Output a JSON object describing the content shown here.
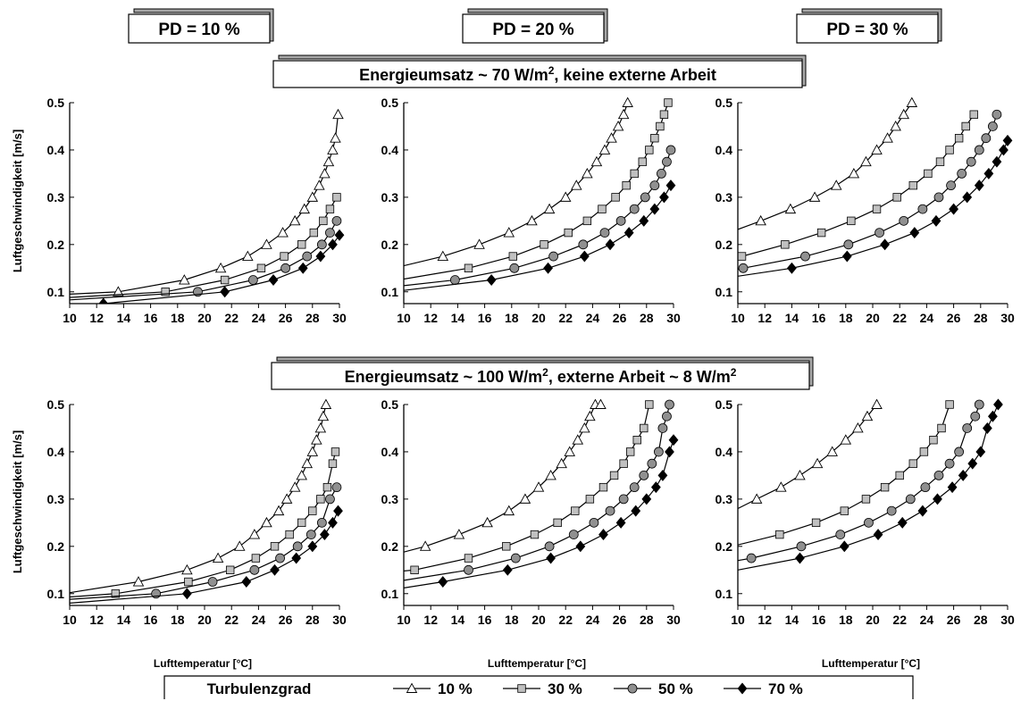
{
  "pd_labels": [
    "PD = 10 %",
    "PD = 20 %",
    "PD = 30 %"
  ],
  "row_titles": [
    {
      "before": "Energieumsatz ~ 70 W/m",
      "sup": "2",
      "after": ", keine externe Arbeit"
    },
    {
      "before": "Energieumsatz ~ 100 W/m",
      "sup": "2",
      "after": ", externe Arbeit ~ 8 W/m",
      "sup2": "2"
    }
  ],
  "y_axis_label": "Luftgeschwindigkeit [m/s]",
  "x_axis_label": "Lufttemperatur [°C]",
  "legend": {
    "title": "Turbulenzgrad",
    "entries": [
      {
        "label": "10 %",
        "marker": "triangle-open"
      },
      {
        "label": "30 %",
        "marker": "square-gray"
      },
      {
        "label": "50 %",
        "marker": "circle-gray"
      },
      {
        "label": "70 %",
        "marker": "diamond-black"
      }
    ]
  },
  "colors": {
    "line": "#000000",
    "square_fill": "#c0c0c0",
    "circle_fill": "#909090",
    "diamond_fill": "#000000"
  },
  "chart_data": [
    {
      "type": "line",
      "row": 0,
      "col": 0,
      "xlim": [
        10,
        30
      ],
      "ylim": [
        0.075,
        0.5
      ],
      "xticks": [
        10,
        12,
        14,
        16,
        18,
        20,
        22,
        24,
        26,
        28,
        30
      ],
      "yticks": [
        0.1,
        0.2,
        0.3,
        0.4,
        0.5
      ],
      "series": [
        {
          "name": "10 %",
          "x": [
            10,
            13.6,
            18.5,
            21.2,
            23.2,
            24.6,
            25.8,
            26.7,
            27.4,
            28.0,
            28.5,
            28.9,
            29.2,
            29.5,
            29.7,
            29.9
          ],
          "y": [
            0.095,
            0.1,
            0.125,
            0.15,
            0.175,
            0.2,
            0.225,
            0.25,
            0.275,
            0.3,
            0.325,
            0.35,
            0.375,
            0.4,
            0.425,
            0.475
          ]
        },
        {
          "name": "30 %",
          "x": [
            10,
            17.1,
            21.5,
            24.2,
            25.9,
            27.2,
            28.1,
            28.8,
            29.3,
            29.8
          ],
          "y": [
            0.088,
            0.1,
            0.125,
            0.15,
            0.175,
            0.2,
            0.225,
            0.25,
            0.275,
            0.3
          ]
        },
        {
          "name": "50 %",
          "x": [
            10,
            19.5,
            23.6,
            26.0,
            27.6,
            28.7,
            29.3,
            29.8
          ],
          "y": [
            0.083,
            0.1,
            0.125,
            0.15,
            0.175,
            0.2,
            0.225,
            0.25
          ]
        },
        {
          "name": "70 %",
          "x": [
            10,
            12.5,
            21.5,
            25.1,
            27.3,
            28.6,
            29.5,
            30
          ],
          "y": [
            0.07,
            0.075,
            0.1,
            0.125,
            0.15,
            0.175,
            0.2,
            0.22
          ]
        }
      ]
    },
    {
      "type": "line",
      "row": 0,
      "col": 1,
      "xlim": [
        10,
        30
      ],
      "ylim": [
        0.075,
        0.5
      ],
      "xticks": [
        10,
        12,
        14,
        16,
        18,
        20,
        22,
        24,
        26,
        28,
        30
      ],
      "yticks": [
        0.1,
        0.2,
        0.3,
        0.4,
        0.5
      ],
      "series": [
        {
          "name": "10 %",
          "x": [
            10,
            12.9,
            15.6,
            17.8,
            19.5,
            20.8,
            22.0,
            22.8,
            23.6,
            24.3,
            24.9,
            25.4,
            25.9,
            26.3,
            26.6
          ],
          "y": [
            0.155,
            0.175,
            0.2,
            0.225,
            0.25,
            0.275,
            0.3,
            0.325,
            0.35,
            0.375,
            0.4,
            0.425,
            0.45,
            0.475,
            0.5
          ]
        },
        {
          "name": "30 %",
          "x": [
            10,
            14.8,
            18.1,
            20.4,
            22.2,
            23.6,
            24.7,
            25.7,
            26.5,
            27.1,
            27.7,
            28.2,
            28.6,
            29.0,
            29.3,
            29.6
          ],
          "y": [
            0.127,
            0.15,
            0.175,
            0.2,
            0.225,
            0.25,
            0.275,
            0.3,
            0.325,
            0.35,
            0.375,
            0.4,
            0.425,
            0.45,
            0.475,
            0.5
          ]
        },
        {
          "name": "50 %",
          "x": [
            10,
            13.8,
            18.2,
            21.1,
            23.3,
            24.9,
            26.1,
            27.1,
            27.9,
            28.6,
            29.1,
            29.5,
            29.8
          ],
          "y": [
            0.113,
            0.125,
            0.15,
            0.175,
            0.2,
            0.225,
            0.25,
            0.275,
            0.3,
            0.325,
            0.35,
            0.375,
            0.4
          ]
        },
        {
          "name": "70 %",
          "x": [
            10,
            16.5,
            20.7,
            23.4,
            25.3,
            26.7,
            27.8,
            28.6,
            29.3,
            29.8
          ],
          "y": [
            0.103,
            0.125,
            0.15,
            0.175,
            0.2,
            0.225,
            0.25,
            0.275,
            0.3,
            0.325
          ]
        }
      ]
    },
    {
      "type": "line",
      "row": 0,
      "col": 2,
      "xlim": [
        10,
        30
      ],
      "ylim": [
        0.075,
        0.5
      ],
      "xticks": [
        10,
        12,
        14,
        16,
        18,
        20,
        22,
        24,
        26,
        28,
        30
      ],
      "yticks": [
        0.1,
        0.2,
        0.3,
        0.4,
        0.5
      ],
      "series": [
        {
          "name": "10 %",
          "x": [
            10,
            11.7,
            13.9,
            15.7,
            17.3,
            18.6,
            19.5,
            20.3,
            21.1,
            21.7,
            22.3,
            22.9
          ],
          "y": [
            0.232,
            0.25,
            0.275,
            0.3,
            0.325,
            0.35,
            0.375,
            0.4,
            0.425,
            0.45,
            0.475,
            0.5
          ]
        },
        {
          "name": "30 %",
          "x": [
            10,
            10.3,
            13.5,
            16.2,
            18.4,
            20.3,
            21.8,
            23.0,
            24.1,
            25.0,
            25.7,
            26.4,
            26.9,
            27.5
          ],
          "y": [
            0.175,
            0.175,
            0.2,
            0.225,
            0.25,
            0.275,
            0.3,
            0.325,
            0.35,
            0.375,
            0.4,
            0.425,
            0.45,
            0.475
          ]
        },
        {
          "name": "50 %",
          "x": [
            10,
            10.4,
            15.0,
            18.2,
            20.5,
            22.3,
            23.7,
            24.9,
            25.8,
            26.6,
            27.3,
            27.9,
            28.4,
            28.9,
            29.2
          ],
          "y": [
            0.148,
            0.15,
            0.175,
            0.2,
            0.225,
            0.25,
            0.275,
            0.3,
            0.325,
            0.35,
            0.375,
            0.4,
            0.425,
            0.45,
            0.475
          ]
        },
        {
          "name": "70 %",
          "x": [
            10,
            14.0,
            18.1,
            20.9,
            23.1,
            24.7,
            26.0,
            27.0,
            27.9,
            28.6,
            29.2,
            29.7,
            30
          ],
          "y": [
            0.133,
            0.15,
            0.175,
            0.2,
            0.225,
            0.25,
            0.275,
            0.3,
            0.325,
            0.35,
            0.375,
            0.4,
            0.42
          ]
        }
      ]
    },
    {
      "type": "line",
      "row": 1,
      "col": 0,
      "xlim": [
        10,
        30
      ],
      "ylim": [
        0.075,
        0.5
      ],
      "xticks": [
        10,
        12,
        14,
        16,
        18,
        20,
        22,
        24,
        26,
        28,
        30
      ],
      "yticks": [
        0.1,
        0.2,
        0.3,
        0.4,
        0.5
      ],
      "series": [
        {
          "name": "10 %",
          "x": [
            10,
            15.1,
            18.7,
            21.0,
            22.6,
            23.7,
            24.6,
            25.5,
            26.1,
            26.7,
            27.2,
            27.6,
            28.0,
            28.3,
            28.6,
            28.8,
            29.0
          ],
          "y": [
            0.102,
            0.125,
            0.15,
            0.175,
            0.2,
            0.225,
            0.25,
            0.275,
            0.3,
            0.325,
            0.35,
            0.375,
            0.4,
            0.425,
            0.45,
            0.475,
            0.5
          ]
        },
        {
          "name": "30 %",
          "x": [
            10,
            13.4,
            18.8,
            21.9,
            23.8,
            25.2,
            26.3,
            27.2,
            28.0,
            28.6,
            29.1,
            29.5,
            29.7
          ],
          "y": [
            0.093,
            0.1,
            0.125,
            0.15,
            0.175,
            0.2,
            0.225,
            0.25,
            0.275,
            0.3,
            0.325,
            0.375,
            0.4
          ]
        },
        {
          "name": "50 %",
          "x": [
            10,
            16.4,
            20.6,
            23.7,
            25.6,
            26.9,
            27.9,
            28.7,
            29.3,
            29.8
          ],
          "y": [
            0.088,
            0.1,
            0.125,
            0.15,
            0.175,
            0.2,
            0.225,
            0.25,
            0.3,
            0.325
          ]
        },
        {
          "name": "70 %",
          "x": [
            10,
            18.7,
            23.1,
            25.2,
            26.8,
            28.0,
            28.9,
            29.5,
            29.9
          ],
          "y": [
            0.08,
            0.1,
            0.125,
            0.15,
            0.175,
            0.2,
            0.225,
            0.25,
            0.275
          ]
        }
      ]
    },
    {
      "type": "line",
      "row": 1,
      "col": 1,
      "xlim": [
        10,
        30
      ],
      "ylim": [
        0.075,
        0.5
      ],
      "xticks": [
        10,
        12,
        14,
        16,
        18,
        20,
        22,
        24,
        26,
        28,
        30
      ],
      "yticks": [
        0.1,
        0.2,
        0.3,
        0.4,
        0.5
      ],
      "series": [
        {
          "name": "10 %",
          "x": [
            10,
            11.6,
            14.1,
            16.2,
            17.8,
            19.0,
            20.0,
            20.9,
            21.7,
            22.3,
            22.9,
            23.4,
            23.8,
            24.2,
            24.6
          ],
          "y": [
            0.188,
            0.2,
            0.225,
            0.25,
            0.275,
            0.3,
            0.325,
            0.35,
            0.375,
            0.4,
            0.425,
            0.45,
            0.475,
            0.5,
            0.5
          ]
        },
        {
          "name": "30 %",
          "x": [
            10,
            10.8,
            14.8,
            17.6,
            19.7,
            21.4,
            22.7,
            23.8,
            24.8,
            25.6,
            26.3,
            26.8,
            27.3,
            27.8,
            28.2
          ],
          "y": [
            0.148,
            0.15,
            0.175,
            0.2,
            0.225,
            0.25,
            0.275,
            0.3,
            0.325,
            0.35,
            0.375,
            0.4,
            0.425,
            0.45,
            0.5
          ]
        },
        {
          "name": "50 %",
          "x": [
            10,
            14.8,
            18.3,
            20.8,
            22.6,
            24.1,
            25.3,
            26.3,
            27.1,
            27.8,
            28.4,
            28.9,
            29.2,
            29.5,
            29.7
          ],
          "y": [
            0.128,
            0.15,
            0.175,
            0.2,
            0.225,
            0.25,
            0.275,
            0.3,
            0.325,
            0.35,
            0.375,
            0.4,
            0.45,
            0.475,
            0.5
          ]
        },
        {
          "name": "70 %",
          "x": [
            10,
            12.9,
            17.7,
            20.9,
            23.1,
            24.8,
            26.1,
            27.2,
            28.0,
            28.7,
            29.2,
            29.7,
            30
          ],
          "y": [
            0.112,
            0.125,
            0.15,
            0.175,
            0.2,
            0.225,
            0.25,
            0.275,
            0.3,
            0.325,
            0.35,
            0.4,
            0.425
          ]
        }
      ]
    },
    {
      "type": "line",
      "row": 1,
      "col": 2,
      "xlim": [
        10,
        30
      ],
      "ylim": [
        0.075,
        0.5
      ],
      "xticks": [
        10,
        12,
        14,
        16,
        18,
        20,
        22,
        24,
        26,
        28,
        30
      ],
      "yticks": [
        0.1,
        0.2,
        0.3,
        0.4,
        0.5
      ],
      "series": [
        {
          "name": "10 %",
          "x": [
            10,
            11.4,
            13.2,
            14.6,
            15.9,
            17.0,
            18.0,
            18.9,
            19.6,
            20.3
          ],
          "y": [
            0.28,
            0.3,
            0.325,
            0.35,
            0.375,
            0.4,
            0.425,
            0.45,
            0.475,
            0.5
          ]
        },
        {
          "name": "30 %",
          "x": [
            10,
            13.1,
            15.8,
            17.9,
            19.5,
            20.9,
            22.0,
            23.0,
            23.8,
            24.5,
            25.1,
            25.7
          ],
          "y": [
            0.203,
            0.225,
            0.25,
            0.275,
            0.3,
            0.325,
            0.35,
            0.375,
            0.4,
            0.425,
            0.45,
            0.5
          ]
        },
        {
          "name": "50 %",
          "x": [
            10,
            11.0,
            14.7,
            17.6,
            19.7,
            21.4,
            22.8,
            23.9,
            24.9,
            25.7,
            26.4,
            27.0,
            27.6,
            27.9
          ],
          "y": [
            0.17,
            0.175,
            0.2,
            0.225,
            0.25,
            0.275,
            0.3,
            0.325,
            0.35,
            0.375,
            0.4,
            0.45,
            0.475,
            0.5
          ]
        },
        {
          "name": "70 %",
          "x": [
            10,
            14.6,
            17.9,
            20.4,
            22.2,
            23.7,
            24.8,
            25.9,
            26.7,
            27.4,
            28.0,
            28.5,
            28.9,
            29.3
          ],
          "y": [
            0.15,
            0.175,
            0.2,
            0.225,
            0.25,
            0.275,
            0.3,
            0.325,
            0.35,
            0.375,
            0.4,
            0.45,
            0.475,
            0.5
          ]
        }
      ]
    }
  ]
}
